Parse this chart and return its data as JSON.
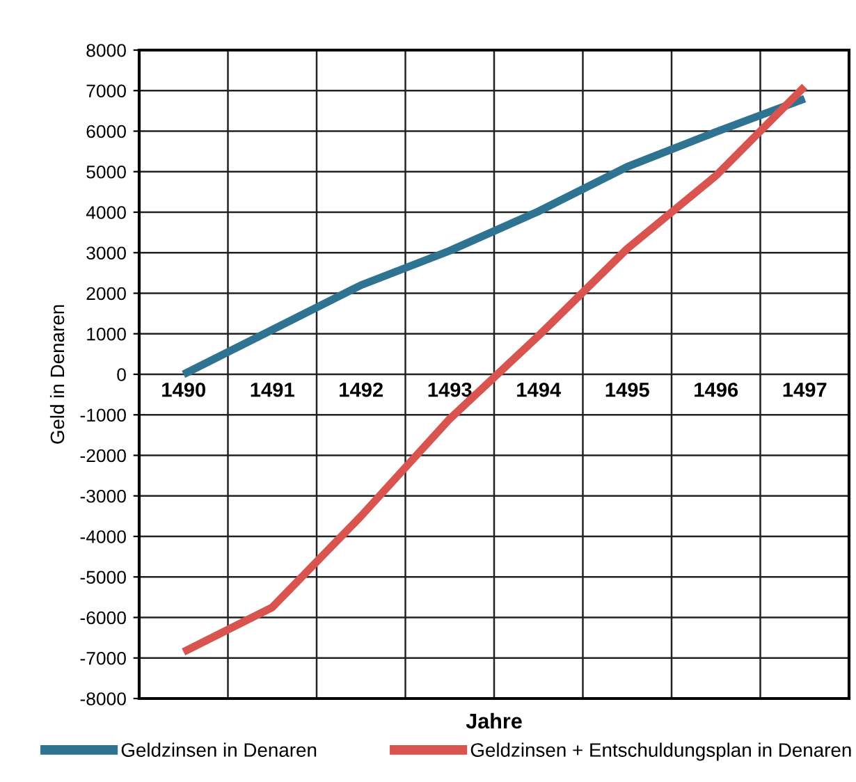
{
  "chart_data": {
    "type": "line",
    "xlabel": "Jahre",
    "ylabel": "Geld in Denaren",
    "categories": [
      "1490",
      "1491",
      "1492",
      "1493",
      "1494",
      "1495",
      "1496",
      "1497"
    ],
    "series": [
      {
        "name": "Geldzinsen in Denaren",
        "color": "#2f7392",
        "values": [
          0,
          1100,
          2200,
          3050,
          4020,
          5120,
          5980,
          6800
        ]
      },
      {
        "name": "Geldzinsen + Entschuldungsplan in Denaren",
        "color": "#d9534f",
        "values": [
          -6850,
          -5750,
          -3500,
          -1100,
          950,
          3100,
          4900,
          7100
        ]
      }
    ],
    "ylim": [
      -8000,
      8000
    ],
    "yticks": [
      -8000,
      -7000,
      -6000,
      -5000,
      -4000,
      -3000,
      -2000,
      -1000,
      0,
      1000,
      2000,
      3000,
      4000,
      5000,
      6000,
      7000,
      8000
    ],
    "grid": true,
    "legend": "bottom",
    "marker": "none",
    "line_style": "solid"
  }
}
